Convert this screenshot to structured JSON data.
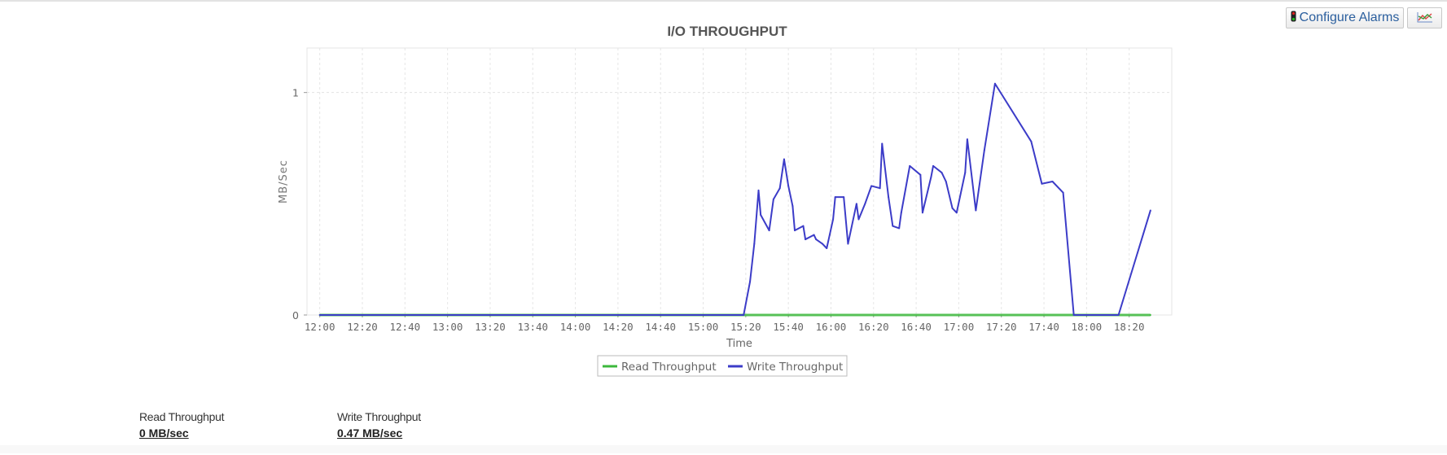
{
  "toolbar": {
    "configure_alarms_label": "Configure Alarms",
    "configure_alarms_icon": "traffic-light-icon",
    "chart_type_icon": "line-chart-icon"
  },
  "summary": [
    {
      "label": "Read Throughput",
      "value": "0 MB/sec"
    },
    {
      "label": "Write Throughput",
      "value": "0.47 MB/sec"
    }
  ],
  "chart_data": {
    "type": "line",
    "title": "I/O THROUGHPUT",
    "xlabel": "Time",
    "ylabel": "MB/Sec",
    "xlim": [
      "11:54",
      "18:40"
    ],
    "ylim": [
      0,
      1.2
    ],
    "xticks": [
      "12:00",
      "12:20",
      "12:40",
      "13:00",
      "13:20",
      "13:40",
      "14:00",
      "14:20",
      "14:40",
      "15:00",
      "15:20",
      "15:40",
      "16:00",
      "16:20",
      "16:40",
      "17:00",
      "17:20",
      "17:40",
      "18:00",
      "18:20"
    ],
    "yticks": [
      0,
      1
    ],
    "grid": true,
    "legend_position": "bottom",
    "series": [
      {
        "name": "Read Throughput",
        "color": "#3cb83c",
        "points": [
          [
            "12:00",
            0
          ],
          [
            "18:30",
            0
          ]
        ]
      },
      {
        "name": "Write Throughput",
        "color": "#3c3cc8",
        "points": [
          [
            "12:00",
            0
          ],
          [
            "15:19",
            0
          ],
          [
            "15:22",
            0.15
          ],
          [
            "15:24",
            0.32
          ],
          [
            "15:26",
            0.56
          ],
          [
            "15:27",
            0.45
          ],
          [
            "15:31",
            0.38
          ],
          [
            "15:33",
            0.52
          ],
          [
            "15:36",
            0.57
          ],
          [
            "15:38",
            0.7
          ],
          [
            "15:40",
            0.58
          ],
          [
            "15:42",
            0.49
          ],
          [
            "15:43",
            0.38
          ],
          [
            "15:47",
            0.4
          ],
          [
            "15:48",
            0.34
          ],
          [
            "15:52",
            0.36
          ],
          [
            "15:53",
            0.34
          ],
          [
            "15:56",
            0.32
          ],
          [
            "15:58",
            0.3
          ],
          [
            "16:01",
            0.43
          ],
          [
            "16:02",
            0.53
          ],
          [
            "16:06",
            0.53
          ],
          [
            "16:08",
            0.32
          ],
          [
            "16:12",
            0.5
          ],
          [
            "16:13",
            0.43
          ],
          [
            "16:16",
            0.5
          ],
          [
            "16:19",
            0.58
          ],
          [
            "16:23",
            0.57
          ],
          [
            "16:24",
            0.77
          ],
          [
            "16:27",
            0.53
          ],
          [
            "16:29",
            0.4
          ],
          [
            "16:32",
            0.39
          ],
          [
            "16:33",
            0.46
          ],
          [
            "16:37",
            0.67
          ],
          [
            "16:42",
            0.63
          ],
          [
            "16:43",
            0.46
          ],
          [
            "16:47",
            0.62
          ],
          [
            "16:48",
            0.67
          ],
          [
            "16:52",
            0.64
          ],
          [
            "16:54",
            0.6
          ],
          [
            "16:57",
            0.48
          ],
          [
            "16:59",
            0.46
          ],
          [
            "17:03",
            0.64
          ],
          [
            "17:04",
            0.79
          ],
          [
            "17:08",
            0.47
          ],
          [
            "17:12",
            0.74
          ],
          [
            "17:17",
            1.04
          ],
          [
            "17:34",
            0.78
          ],
          [
            "17:39",
            0.59
          ],
          [
            "17:44",
            0.6
          ],
          [
            "17:49",
            0.55
          ],
          [
            "17:54",
            0
          ],
          [
            "18:15",
            0
          ],
          [
            "18:30",
            0.47
          ]
        ]
      }
    ]
  }
}
